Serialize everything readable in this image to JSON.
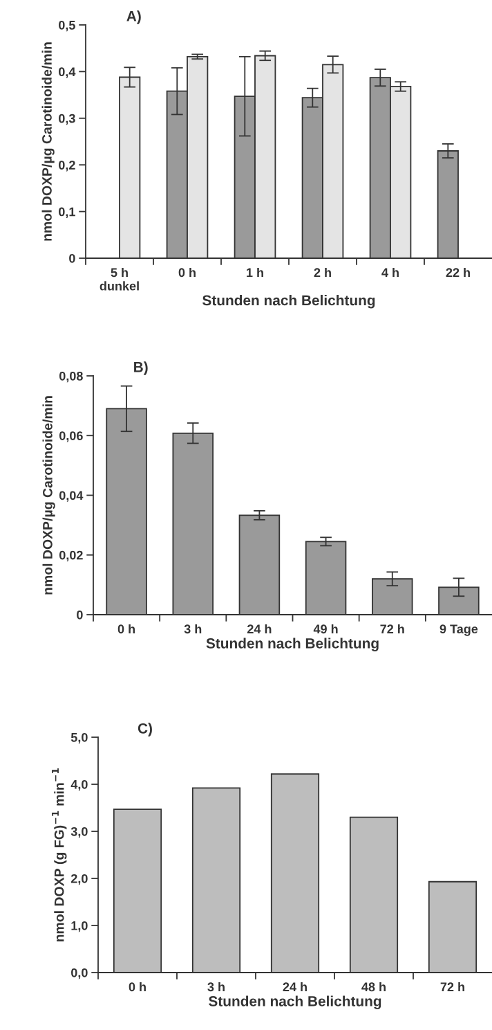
{
  "chart_data": [
    {
      "type": "bar",
      "title": "A)",
      "xlabel": "Stunden nach Belichtung",
      "ylabel": "nmol DOXP/µg Carotinoide/min",
      "categories": [
        "5 h\ndunkel",
        "0 h",
        "1 h",
        "2 h",
        "4 h",
        "22 h"
      ],
      "series": [
        {
          "color": "#9a9a9a",
          "values": [
            null,
            0.358,
            0.347,
            0.344,
            0.387,
            0.23
          ],
          "errors": [
            null,
            0.05,
            0.085,
            0.02,
            0.018,
            0.015
          ]
        },
        {
          "color": "#e4e4e4",
          "values": [
            0.388,
            0.432,
            0.434,
            0.415,
            0.368,
            null
          ],
          "errors": [
            0.021,
            0.005,
            0.01,
            0.018,
            0.01,
            null
          ]
        }
      ],
      "ylim": [
        0,
        0.5
      ],
      "yticks": [
        0,
        {
          "value": 0.1,
          "label": "0,1"
        },
        {
          "value": 0.2,
          "label": "0,2"
        },
        {
          "value": 0.3,
          "label": "0,3"
        },
        {
          "value": 0.4,
          "label": "0,4"
        },
        {
          "value": 0.5,
          "label": "0,5"
        }
      ],
      "grid": false
    },
    {
      "type": "bar",
      "title": "B)",
      "xlabel": "Stunden nach Belichtung",
      "ylabel": "nmol DOXP/µg Carotinoide/min",
      "categories": [
        "0 h",
        "3 h",
        "24 h",
        "49 h",
        "72 h",
        "9 Tage"
      ],
      "series": [
        {
          "color": "#9a9a9a",
          "values": [
            0.069,
            0.0608,
            0.0333,
            0.0245,
            0.012,
            0.0092
          ],
          "errors": [
            0.0076,
            0.0034,
            0.0015,
            0.0014,
            0.0023,
            0.003
          ]
        }
      ],
      "ylim": [
        0,
        0.08
      ],
      "yticks": [
        0,
        {
          "value": 0.02,
          "label": "0,02"
        },
        {
          "value": 0.04,
          "label": "0,04"
        },
        {
          "value": 0.06,
          "label": "0,06"
        },
        {
          "value": 0.08,
          "label": "0,08"
        }
      ],
      "grid": false
    },
    {
      "type": "bar",
      "title": "C)",
      "xlabel": "Stunden nach Belichtung",
      "ylabel": "nmol DOXP (g FG)$^{−1}$ min$^{−1}$",
      "categories": [
        "0 h",
        "3 h",
        "24 h",
        "48 h",
        "72 h"
      ],
      "series": [
        {
          "color": "#bdbdbd",
          "values": [
            3.47,
            3.92,
            4.22,
            3.3,
            1.93
          ]
        }
      ],
      "ylim": [
        0,
        5
      ],
      "yticks": [
        {
          "value": 0,
          "label": "0,0"
        },
        {
          "value": 1,
          "label": "1,0"
        },
        {
          "value": 2,
          "label": "2,0"
        },
        {
          "value": 3,
          "label": "3,0"
        },
        {
          "value": 4,
          "label": "4,0"
        },
        {
          "value": 5,
          "label": "5,0"
        }
      ],
      "grid": false
    }
  ]
}
